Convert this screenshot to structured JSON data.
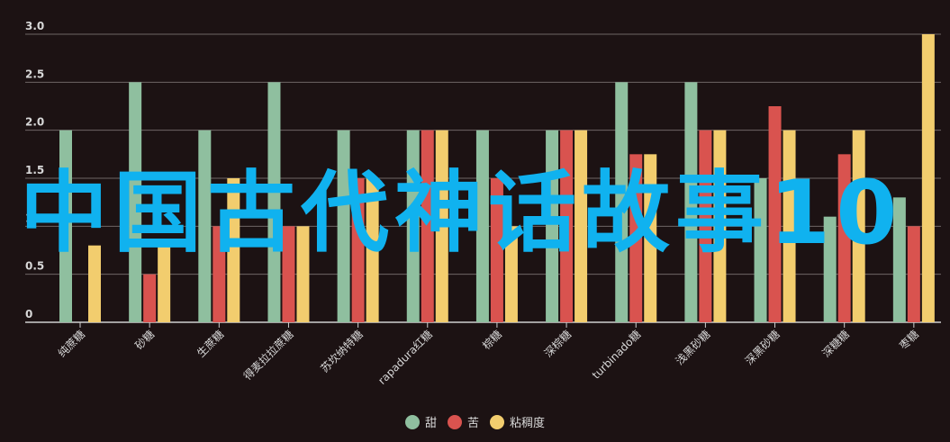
{
  "chart_data": {
    "type": "bar",
    "categories": [
      "纯蔗糖",
      "砂糖",
      "生蔗糖",
      "得麦拉拉蔗糖",
      "苏坎纳特糖",
      "rapadura红糖",
      "棕糖",
      "深棕糖",
      "turbinado糖",
      "浅黑砂糖",
      "深黑砂糖",
      "深糖糖",
      "枣糖"
    ],
    "series": [
      {
        "name": "甜",
        "color": "#8fbf9f",
        "values": [
          2.0,
          2.5,
          2.0,
          2.5,
          2.0,
          2.0,
          2.0,
          2.0,
          2.5,
          2.5,
          1.5,
          1.1,
          1.3
        ]
      },
      {
        "name": "苦",
        "color": "#d9534f",
        "values": [
          0,
          0.5,
          1.0,
          1.0,
          1.5,
          2.0,
          1.5,
          2.0,
          1.75,
          2.0,
          2.25,
          1.75,
          1.0
        ]
      },
      {
        "name": "粘稠度",
        "color": "#f2cd6e",
        "values": [
          0.8,
          0.8,
          1.5,
          1.0,
          1.5,
          2.0,
          1.0,
          2.0,
          1.75,
          2.0,
          2.0,
          2.0,
          3.0
        ]
      }
    ],
    "yticks": [
      "0",
      "0.5",
      "1.0",
      "1.5",
      "2.0",
      "2.5",
      "3.0"
    ],
    "ylim": [
      0,
      3
    ],
    "grid": true,
    "legend_position": "bottom-center",
    "title": "",
    "xlabel": "",
    "ylabel": ""
  },
  "watermark": "中国古代神话故事10",
  "colors": {
    "background": "#1c1213",
    "gridline": "#6e6666",
    "axis_text": "#d8d8d8",
    "watermark": "#10b2ef"
  }
}
